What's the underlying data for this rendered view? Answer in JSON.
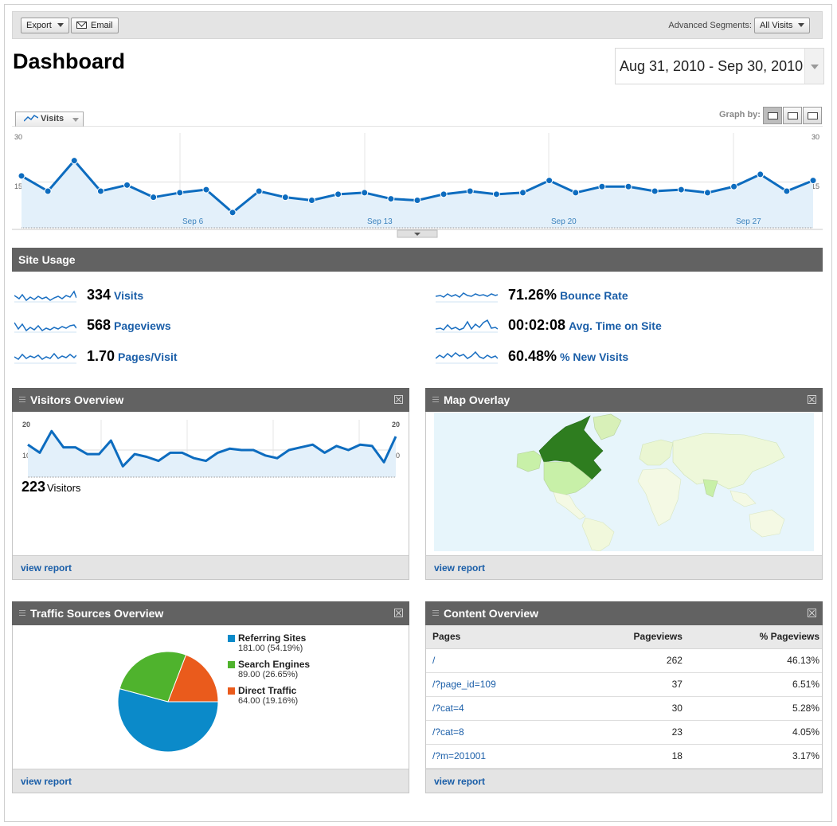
{
  "toolbar": {
    "export_label": "Export",
    "email_label": "Email",
    "segments_label": "Advanced Segments:",
    "segments_value": "All Visits"
  },
  "page_title": "Dashboard",
  "date_range": "Aug 31, 2010 - Sep 30, 2010",
  "main_graph": {
    "metric_label": "Visits",
    "graph_by_label": "Graph by:",
    "y_top": "30",
    "y_mid": "15",
    "x_labels": [
      "Sep 6",
      "Sep 13",
      "Sep 20",
      "Sep 27"
    ]
  },
  "site_usage": {
    "title": "Site Usage",
    "items": [
      {
        "value": "334",
        "label": "Visits"
      },
      {
        "value": "568",
        "label": "Pageviews"
      },
      {
        "value": "1.70",
        "label": "Pages/Visit"
      },
      {
        "value": "71.26%",
        "label": "Bounce Rate"
      },
      {
        "value": "00:02:08",
        "label": "Avg. Time on Site"
      },
      {
        "value": "60.48%",
        "label": "% New Visits"
      }
    ]
  },
  "visitors_overview": {
    "title": "Visitors Overview",
    "y_top": "20",
    "y_mid": "10",
    "count": "223",
    "count_label": "Visitors",
    "view_report": "view report"
  },
  "map_overlay": {
    "title": "Map Overlay",
    "view_report": "view report"
  },
  "traffic_sources": {
    "title": "Traffic Sources Overview",
    "view_report": "view report",
    "items": [
      {
        "name": "Referring Sites",
        "value": "181.00 (54.19%)",
        "color": "#0b8ac9"
      },
      {
        "name": "Search Engines",
        "value": "89.00 (26.65%)",
        "color": "#4fb32d"
      },
      {
        "name": "Direct Traffic",
        "value": "64.00 (19.16%)",
        "color": "#ea5b1c"
      }
    ]
  },
  "content_overview": {
    "title": "Content Overview",
    "headers": [
      "Pages",
      "Pageviews",
      "% Pageviews"
    ],
    "rows": [
      [
        "/",
        "262",
        "46.13%"
      ],
      [
        "/?page_id=109",
        "37",
        "6.51%"
      ],
      [
        "/?cat=4",
        "30",
        "5.28%"
      ],
      [
        "/?cat=8",
        "23",
        "4.05%"
      ],
      [
        "/?m=201001",
        "18",
        "3.17%"
      ]
    ],
    "view_report": "view report"
  },
  "chart_data": [
    {
      "type": "area",
      "series": [
        {
          "name": "Visits",
          "values": [
            17,
            12,
            22,
            12,
            14,
            10,
            11.5,
            12.5,
            5,
            12,
            10,
            9,
            11,
            11.5,
            9.5,
            9,
            11,
            12,
            11,
            11.5,
            15.5,
            11.5,
            13.5,
            13.5,
            12,
            12.5,
            11.5,
            13.5,
            17.5,
            12,
            15.5
          ]
        }
      ],
      "x": [
        "Aug 31",
        "Sep 1",
        "Sep 2",
        "Sep 3",
        "Sep 4",
        "Sep 5",
        "Sep 6",
        "Sep 7",
        "Sep 8",
        "Sep 9",
        "Sep 10",
        "Sep 11",
        "Sep 12",
        "Sep 13",
        "Sep 14",
        "Sep 15",
        "Sep 16",
        "Sep 17",
        "Sep 18",
        "Sep 19",
        "Sep 20",
        "Sep 21",
        "Sep 22",
        "Sep 23",
        "Sep 24",
        "Sep 25",
        "Sep 26",
        "Sep 27",
        "Sep 28",
        "Sep 29",
        "Sep 30"
      ],
      "ylim": [
        0,
        30
      ]
    },
    {
      "type": "area",
      "series": [
        {
          "values": [
            12,
            9,
            17,
            11,
            11,
            8.5,
            8.5,
            13.5,
            4,
            8.5,
            7.5,
            6,
            9,
            9,
            7,
            6,
            9,
            10.5,
            10,
            10,
            8,
            7,
            10,
            11,
            12,
            9,
            11.5,
            10,
            12,
            11.5,
            5.5,
            15
          ]
        }
      ],
      "ylim": [
        0,
        20
      ]
    },
    {
      "type": "pie",
      "categories": [
        "Referring Sites",
        "Search Engines",
        "Direct Traffic"
      ],
      "values": [
        181,
        89,
        64
      ],
      "colors": [
        "#0b8ac9",
        "#4fb32d",
        "#ea5b1c"
      ]
    }
  ]
}
